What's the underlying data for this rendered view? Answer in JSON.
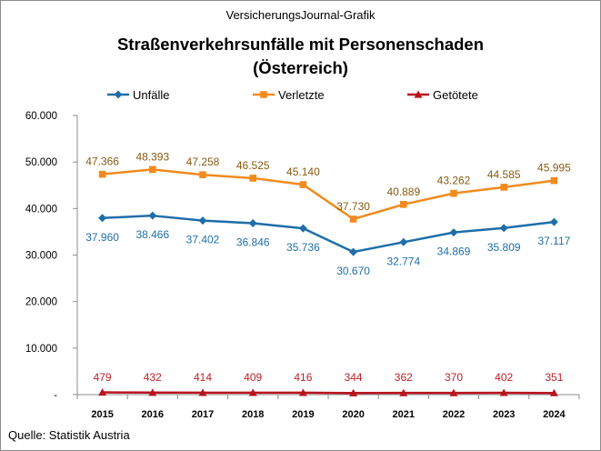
{
  "brand": "VersicherungsJournal-Grafik",
  "source": "Quelle:  Statistik Austria",
  "chart_data": {
    "type": "line",
    "title_line1": "Straßenverkehrsunfälle  mit Personenschaden",
    "title_line2": "(Österreich)",
    "categories": [
      "2015",
      "2016",
      "2017",
      "2018",
      "2019",
      "2020",
      "2021",
      "2022",
      "2023",
      "2024"
    ],
    "ylim": [
      0,
      60000
    ],
    "yticks": [
      {
        "value": 0,
        "label": "-"
      },
      {
        "value": 10000,
        "label": "10.000"
      },
      {
        "value": 20000,
        "label": "20.000"
      },
      {
        "value": 30000,
        "label": "30.000"
      },
      {
        "value": 40000,
        "label": "40.000"
      },
      {
        "value": 50000,
        "label": "50.000"
      },
      {
        "value": 60000,
        "label": "60.000"
      }
    ],
    "grid": false,
    "legend_position": "top",
    "series": [
      {
        "name": "Unfälle",
        "color": "#1f6ea8",
        "label_color": "#1f6ea8",
        "marker": "diamond",
        "label_position": "below",
        "values": [
          37960,
          38466,
          37402,
          36846,
          35736,
          30670,
          32774,
          34869,
          35809,
          37117
        ],
        "labels": [
          "37.960",
          "38.466",
          "37.402",
          "36.846",
          "35.736",
          "30.670",
          "32.774",
          "34.869",
          "35.809",
          "37.117"
        ]
      },
      {
        "name": "Verletzte",
        "color": "#f28a1e",
        "label_color": "#8a5a10",
        "marker": "square",
        "label_position": "above",
        "values": [
          47366,
          48393,
          47258,
          46525,
          45140,
          37730,
          40889,
          43262,
          44585,
          45995
        ],
        "labels": [
          "47.366",
          "48.393",
          "47.258",
          "46.525",
          "45.140",
          "37.730",
          "40.889",
          "43.262",
          "44.585",
          "45.995"
        ]
      },
      {
        "name": "Getötete",
        "color": "#b8141e",
        "label_color": "#c0202a",
        "marker": "triangle",
        "label_position": "fixed-above",
        "values": [
          479,
          432,
          414,
          409,
          416,
          344,
          362,
          370,
          402,
          351
        ],
        "labels": [
          "479",
          "432",
          "414",
          "409",
          "416",
          "344",
          "362",
          "370",
          "402",
          "351"
        ]
      }
    ]
  }
}
